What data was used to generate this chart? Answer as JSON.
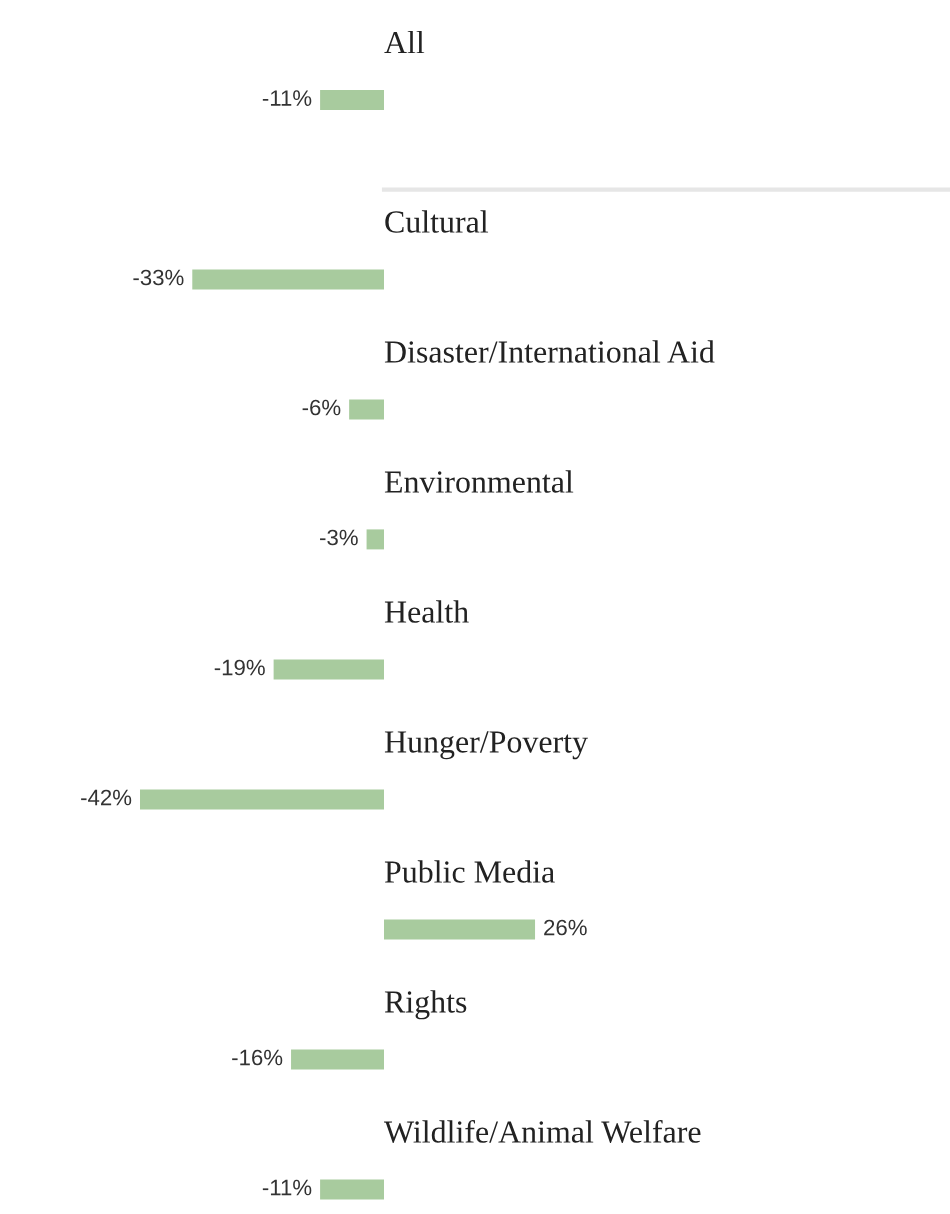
{
  "chart_data": {
    "type": "bar",
    "orientation": "horizontal",
    "categories": [
      "All",
      "Cultural",
      "Disaster/International Aid",
      "Environmental",
      "Health",
      "Hunger/Poverty",
      "Public Media",
      "Rights",
      "Wildlife/Animal Welfare"
    ],
    "values": [
      -11,
      -33,
      -6,
      -3,
      -19,
      -42,
      26,
      -16,
      -11
    ],
    "value_labels": [
      "-11%",
      "-33%",
      "-6%",
      "-3%",
      "-19%",
      "-42%",
      "26%",
      "-16%",
      "-11%"
    ],
    "color": "#a8cb9e"
  }
}
